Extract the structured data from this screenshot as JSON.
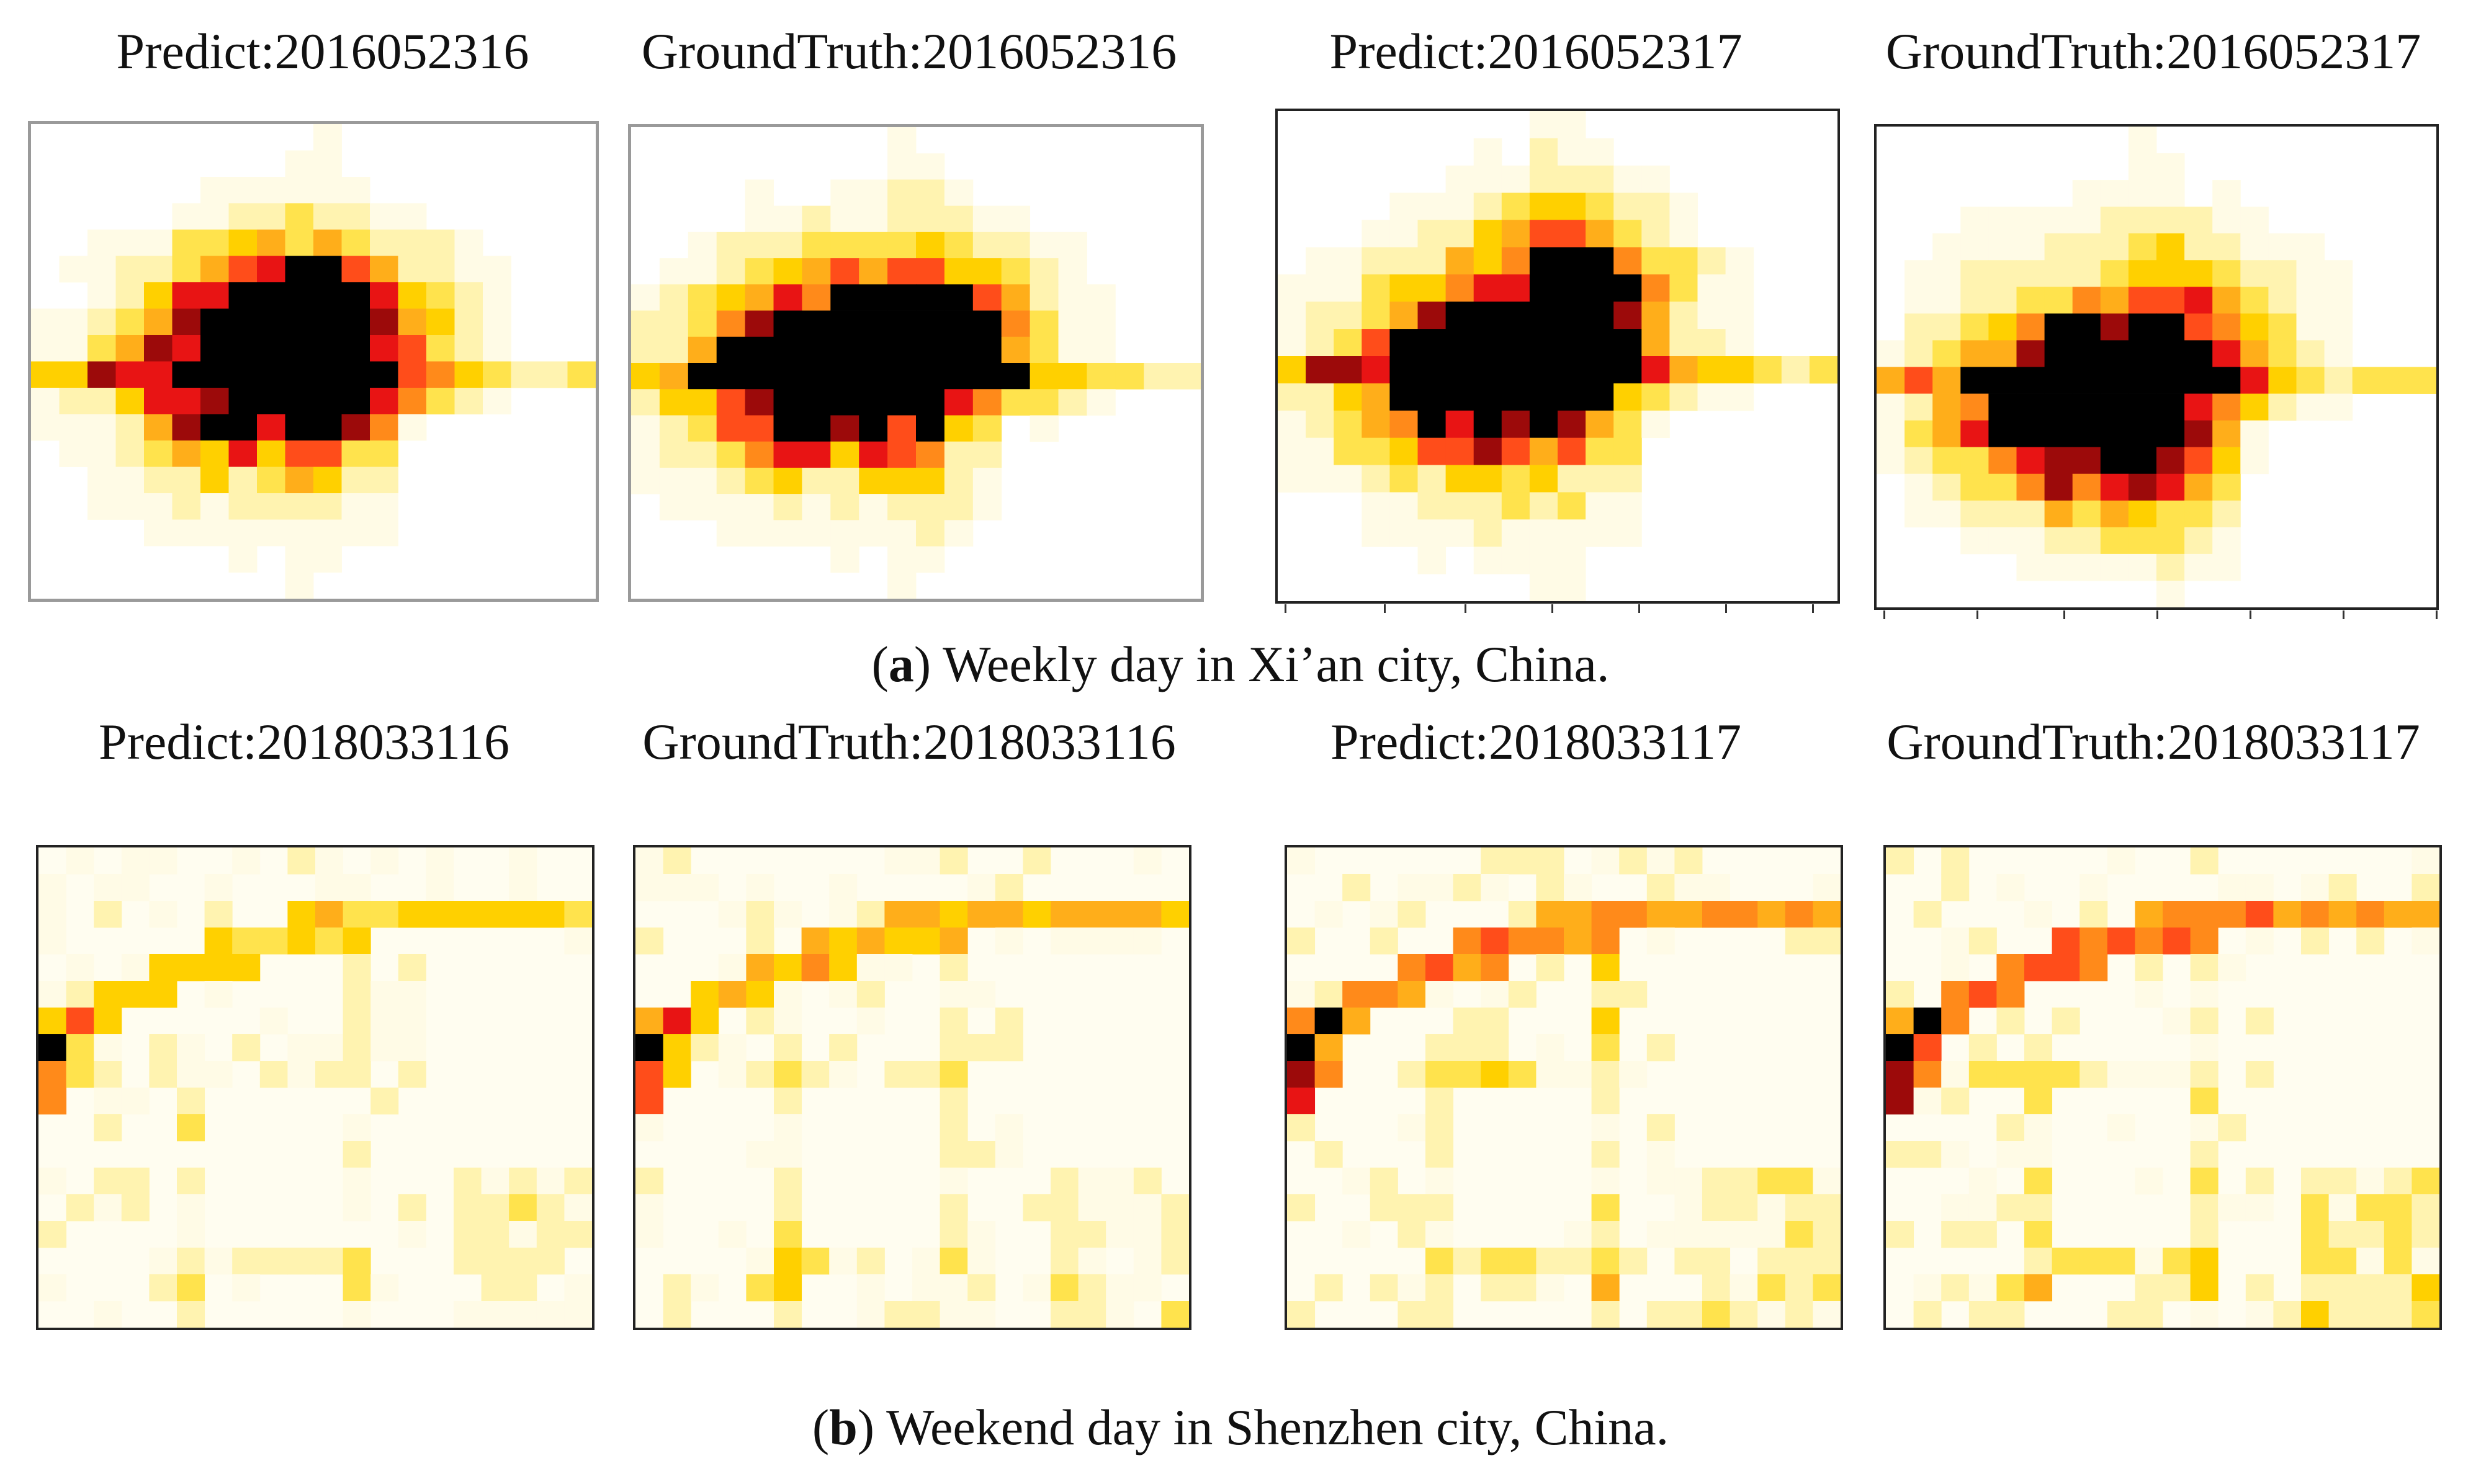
{
  "figure": {
    "caption_a_label": "a",
    "caption_a_text": ") Weekly day in Xi’an city, China.",
    "caption_b_label": "b",
    "caption_b_text": ") Weekend day in Shenzhen city, China."
  },
  "colors": {
    "background": "#ffffff",
    "scale": [
      "#fffbe6",
      "#fff3b0",
      "#ffe34d",
      "#ffd000",
      "#ffae1a",
      "#ff8a1a",
      "#ff4d1a",
      "#e81414",
      "#9c0a0a",
      "#000000"
    ]
  },
  "chart_data": [
    {
      "type": "heatmap",
      "title": "Predict:2016052316",
      "city": "Xi'an",
      "day": "Weekly day",
      "grid": [
        20,
        18
      ],
      "hotspots": [
        {
          "cx": 10.5,
          "cy": 7.5,
          "strength": 1.0
        },
        {
          "cx": 6.5,
          "cy": 9.0,
          "strength": 0.85
        },
        {
          "cx": 8.5,
          "cy": 9.0,
          "strength": 0.8
        },
        {
          "cx": 8.0,
          "cy": 7.5,
          "strength": 0.75
        }
      ],
      "corridor_row": 9,
      "corridor_value": 0.45,
      "seed": 11
    },
    {
      "type": "heatmap",
      "title": "GroundTruth:2016052316",
      "city": "Xi'an",
      "day": "Weekly day",
      "grid": [
        20,
        18
      ],
      "hotspots": [
        {
          "cx": 10.0,
          "cy": 8.0,
          "strength": 1.0
        },
        {
          "cx": 4.5,
          "cy": 9.0,
          "strength": 0.95
        },
        {
          "cx": 7.0,
          "cy": 9.0,
          "strength": 0.9
        },
        {
          "cx": 8.5,
          "cy": 7.5,
          "strength": 0.8
        }
      ],
      "corridor_row": 9,
      "corridor_value": 0.45,
      "seed": 23
    },
    {
      "type": "heatmap",
      "title": "Predict:2016052317",
      "city": "Xi'an",
      "day": "Weekly day",
      "grid": [
        20,
        18
      ],
      "hotspots": [
        {
          "cx": 9.5,
          "cy": 8.0,
          "strength": 1.0
        },
        {
          "cx": 7.0,
          "cy": 9.5,
          "strength": 0.85
        },
        {
          "cx": 5.0,
          "cy": 9.5,
          "strength": 0.75
        },
        {
          "cx": 10.0,
          "cy": 6.0,
          "strength": 0.65
        }
      ],
      "corridor_row": 9,
      "corridor_value": 0.45,
      "seed": 37
    },
    {
      "type": "heatmap",
      "title": "GroundTruth:2016052317",
      "city": "Xi'an",
      "day": "Weekly day",
      "grid": [
        20,
        18
      ],
      "hotspots": [
        {
          "cx": 10.0,
          "cy": 8.0,
          "strength": 1.0
        },
        {
          "cx": 5.0,
          "cy": 10.0,
          "strength": 0.8
        },
        {
          "cx": 7.5,
          "cy": 9.5,
          "strength": 0.8
        },
        {
          "cx": 8.5,
          "cy": 11.5,
          "strength": 0.7
        }
      ],
      "corridor_row": 9,
      "corridor_value": 0.45,
      "seed": 41
    },
    {
      "type": "heatmap",
      "title": "Predict:2018033116",
      "city": "Shenzhen",
      "day": "Weekend day",
      "grid": [
        20,
        18
      ],
      "pattern": "network",
      "intensity": 0.55,
      "seed": 53
    },
    {
      "type": "heatmap",
      "title": "GroundTruth:2018033116",
      "city": "Shenzhen",
      "day": "Weekend day",
      "grid": [
        20,
        18
      ],
      "pattern": "network",
      "intensity": 0.65,
      "seed": 59
    },
    {
      "type": "heatmap",
      "title": "Predict:2018033117",
      "city": "Shenzhen",
      "day": "Weekend day",
      "grid": [
        20,
        18
      ],
      "pattern": "network",
      "intensity": 0.85,
      "seed": 67
    },
    {
      "type": "heatmap",
      "title": "GroundTruth:2018033117",
      "city": "Shenzhen",
      "day": "Weekend day",
      "grid": [
        20,
        18
      ],
      "pattern": "network",
      "intensity": 0.9,
      "seed": 71
    }
  ]
}
